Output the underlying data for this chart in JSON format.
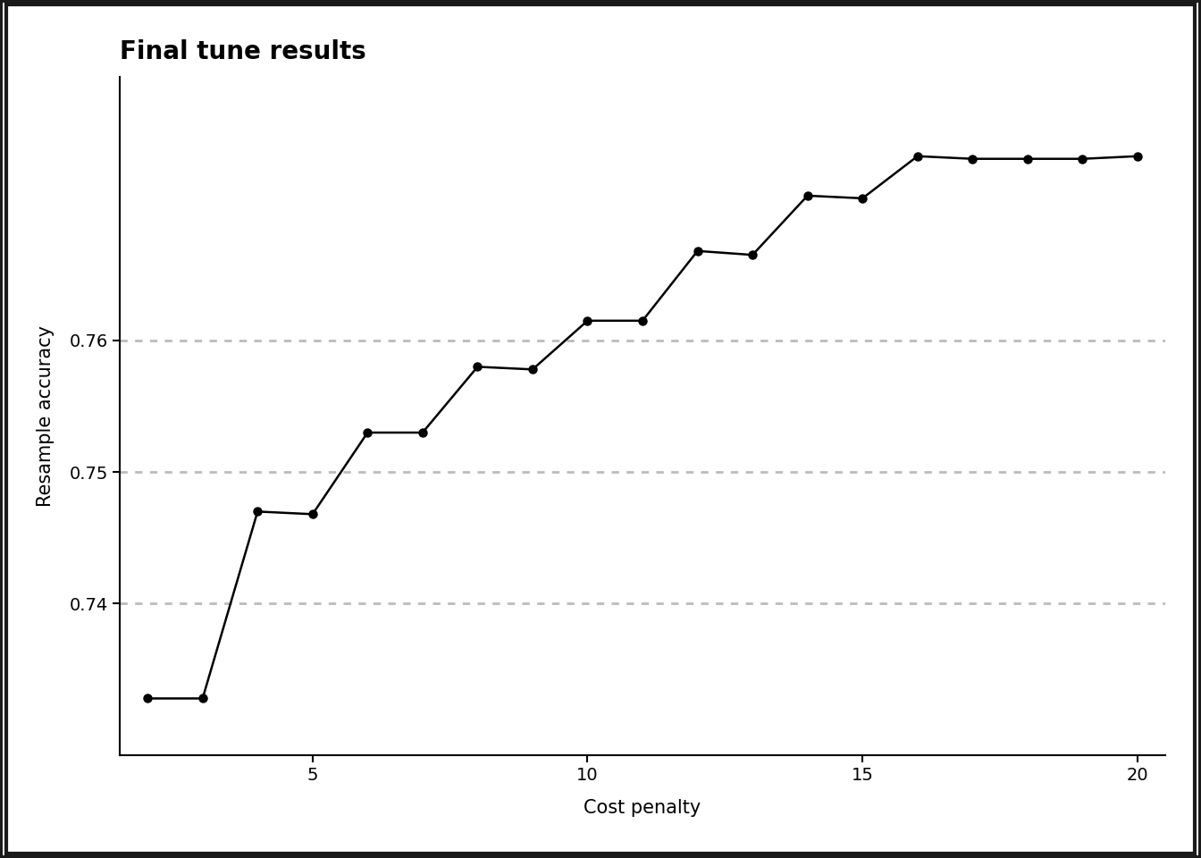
{
  "x": [
    2,
    3,
    4,
    5,
    6,
    7,
    8,
    9,
    10,
    11,
    12,
    13,
    14,
    15,
    16,
    17,
    18,
    19,
    20
  ],
  "y": [
    0.7328,
    0.7328,
    0.747,
    0.7468,
    0.753,
    0.753,
    0.758,
    0.7578,
    0.7615,
    0.7615,
    0.7668,
    0.7665,
    0.771,
    0.7708,
    0.774,
    0.7738,
    0.7738,
    0.7738,
    0.774
  ],
  "title": "Final tune results",
  "xlabel": "Cost penalty",
  "ylabel": "Resample accuracy",
  "xlim": [
    1.5,
    20.5
  ],
  "ylim": [
    0.7285,
    0.78
  ],
  "yticks": [
    0.74,
    0.75,
    0.76
  ],
  "xticks": [
    5,
    10,
    15,
    20
  ],
  "grid_color": "#bbbbbb",
  "line_color": "#000000",
  "marker_color": "#000000",
  "bg_color": "#ffffff",
  "border_color": "#1a1a1a",
  "title_fontsize": 20,
  "label_fontsize": 15,
  "tick_fontsize": 14
}
